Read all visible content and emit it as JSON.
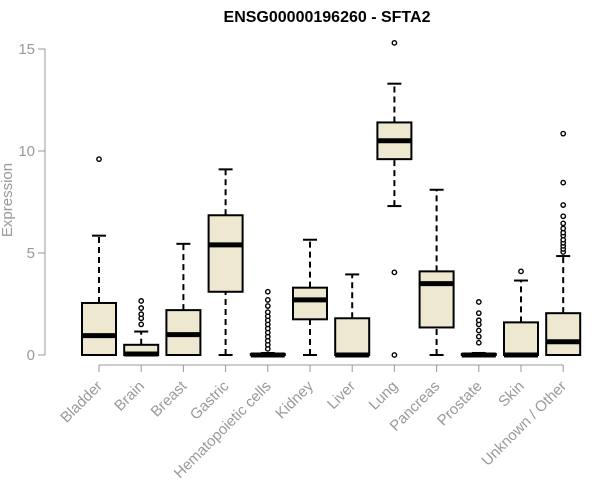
{
  "chart_data": {
    "type": "boxplot",
    "title": "ENSG00000196260 - SFTA2",
    "xlabel": "",
    "ylabel": "Expression",
    "ylim": [
      0,
      15
    ],
    "yticks": [
      0,
      5,
      10,
      15
    ],
    "grid": false,
    "legend": "none",
    "box_color": "#EEE8D0",
    "categories": [
      "Bladder",
      "Brain",
      "Breast",
      "Gastric",
      "Hematopoietic cells",
      "Kidney",
      "Liver",
      "Lung",
      "Pancreas",
      "Prostate",
      "Skin",
      "Unknown / Other"
    ],
    "series": [
      {
        "boxes": [
          {
            "min": 0.0,
            "q1": 0.0,
            "median": 0.95,
            "q3": 2.55,
            "max": 5.85,
            "outliers": [
              9.6
            ]
          },
          {
            "min": 0.0,
            "q1": 0.0,
            "median": 0.05,
            "q3": 0.5,
            "max": 1.15,
            "outliers": [
              1.5,
              1.8,
              2.0,
              2.3,
              2.65
            ]
          },
          {
            "min": 0.0,
            "q1": 0.0,
            "median": 1.0,
            "q3": 2.2,
            "max": 5.45,
            "outliers": []
          },
          {
            "min": 0.0,
            "q1": 3.1,
            "median": 5.4,
            "q3": 6.85,
            "max": 9.1,
            "outliers": []
          },
          {
            "min": 0.0,
            "q1": 0.0,
            "median": 0.0,
            "q3": 0.05,
            "max": 0.1,
            "outliers": [
              0.3,
              0.5,
              0.7,
              0.9,
              1.1,
              1.3,
              1.5,
              1.7,
              1.9,
              2.1,
              2.4,
              2.7,
              3.1
            ]
          },
          {
            "min": 0.0,
            "q1": 1.75,
            "median": 2.7,
            "q3": 3.3,
            "max": 5.65,
            "outliers": []
          },
          {
            "min": 0.0,
            "q1": 0.0,
            "median": 0.0,
            "q3": 1.8,
            "max": 3.95,
            "outliers": []
          },
          {
            "min": 7.3,
            "q1": 9.6,
            "median": 10.5,
            "q3": 11.4,
            "max": 13.3,
            "outliers": [
              15.3,
              4.05,
              0.0
            ]
          },
          {
            "min": 0.0,
            "q1": 1.35,
            "median": 3.5,
            "q3": 4.1,
            "max": 8.1,
            "outliers": []
          },
          {
            "min": 0.0,
            "q1": 0.0,
            "median": 0.0,
            "q3": 0.05,
            "max": 0.1,
            "outliers": [
              0.6,
              0.9,
              1.2,
              1.5,
              1.7,
              2.05,
              2.6
            ]
          },
          {
            "min": 0.0,
            "q1": 0.0,
            "median": 0.0,
            "q3": 1.6,
            "max": 3.65,
            "outliers": [
              4.1
            ]
          },
          {
            "min": 0.0,
            "q1": 0.0,
            "median": 0.65,
            "q3": 2.05,
            "max": 4.85,
            "outliers": [
              5.05,
              5.2,
              5.35,
              5.5,
              5.65,
              5.85,
              6.0,
              6.2,
              6.45,
              6.8,
              7.35,
              8.45,
              10.85
            ]
          }
        ]
      }
    ]
  }
}
